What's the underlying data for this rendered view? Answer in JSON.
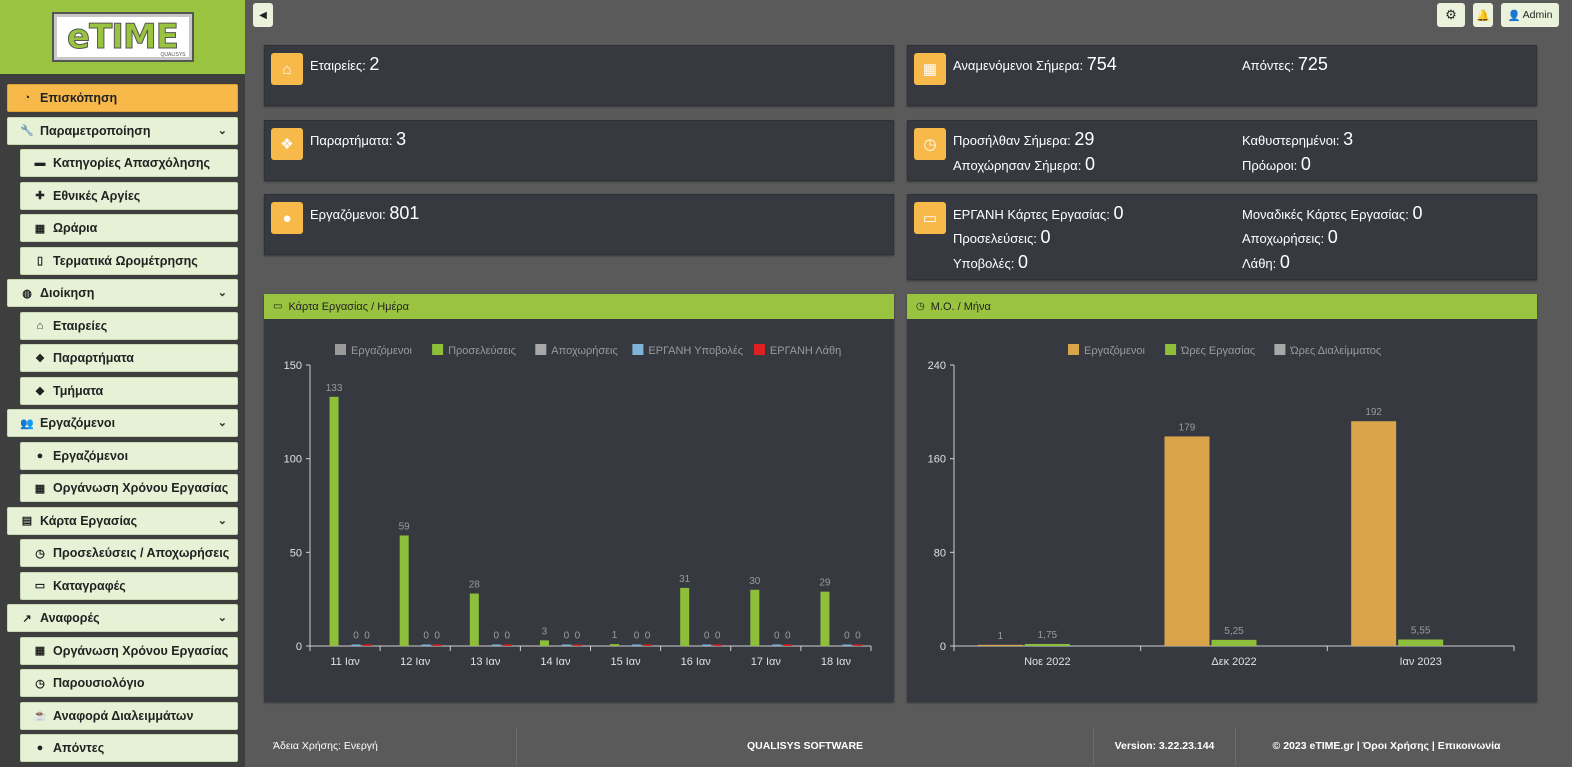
{
  "logo": {
    "text": "eTIME",
    "sub": "QUALISYS"
  },
  "sidebar": {
    "items": [
      {
        "label": "Επισκόπηση",
        "icon": "dashboard-icon",
        "glyph": "◔",
        "level": "top",
        "active": true
      },
      {
        "label": "Παραμετροποίηση",
        "icon": "wrench-icon",
        "glyph": "🔧",
        "level": "top",
        "chevron": true
      },
      {
        "label": "Κατηγορίες Απασχόλησης",
        "icon": "briefcase-icon",
        "glyph": "▬",
        "level": "sub"
      },
      {
        "label": "Εθνικές Αργίες",
        "icon": "gift-icon",
        "glyph": "✚",
        "level": "sub"
      },
      {
        "label": "Ωράρια",
        "icon": "grid-icon",
        "glyph": "▦",
        "level": "sub"
      },
      {
        "label": "Τερματικά Ωρομέτρησης",
        "icon": "mobile-icon",
        "glyph": "▯",
        "level": "sub"
      },
      {
        "label": "Διοίκηση",
        "icon": "globe-icon",
        "glyph": "◍",
        "level": "top",
        "chevron": true
      },
      {
        "label": "Εταιρείες",
        "icon": "home-icon",
        "glyph": "⌂",
        "level": "sub"
      },
      {
        "label": "Παραρτήματα",
        "icon": "cubes-icon",
        "glyph": "❖",
        "level": "sub"
      },
      {
        "label": "Τμήματα",
        "icon": "cube-icon",
        "glyph": "◆",
        "level": "sub"
      },
      {
        "label": "Εργαζόμενοι",
        "icon": "users-icon",
        "glyph": "👥",
        "level": "top",
        "chevron": true
      },
      {
        "label": "Εργαζόμενοι",
        "icon": "user-icon",
        "glyph": "●",
        "level": "sub"
      },
      {
        "label": "Οργάνωση Χρόνου Εργασίας",
        "icon": "grid-icon",
        "glyph": "▦",
        "level": "sub"
      },
      {
        "label": "Κάρτα Εργασίας",
        "icon": "calendar-icon",
        "glyph": "▤",
        "level": "top",
        "chevron": true
      },
      {
        "label": "Προσελεύσεις / Αποχωρήσεις",
        "icon": "clock-icon",
        "glyph": "◷",
        "level": "sub"
      },
      {
        "label": "Καταγραφές",
        "icon": "credit-card-icon",
        "glyph": "▭",
        "level": "sub"
      },
      {
        "label": "Αναφορές",
        "icon": "line-chart-icon",
        "glyph": "↗",
        "level": "top",
        "chevron": true
      },
      {
        "label": "Οργάνωση Χρόνου Εργασίας",
        "icon": "grid-icon",
        "glyph": "▦",
        "level": "sub"
      },
      {
        "label": "Παρουσιολόγιο",
        "icon": "clock-icon",
        "glyph": "◷",
        "level": "sub"
      },
      {
        "label": "Αναφορά Διαλειμμάτων",
        "icon": "coffee-icon",
        "glyph": "☕",
        "level": "sub"
      },
      {
        "label": "Απόντες",
        "icon": "user-times-icon",
        "glyph": "●",
        "level": "sub"
      }
    ]
  },
  "topbar": {
    "settings_icon": "gear-icon",
    "bell_icon": "bell-icon",
    "user_label": "Admin"
  },
  "stats": {
    "companies": {
      "label": "Εταιρείες:",
      "value": "2"
    },
    "branches": {
      "label": "Παραρτήματα:",
      "value": "3"
    },
    "employees": {
      "label": "Εργαζόμενοι:",
      "value": "801"
    },
    "expected_today": {
      "label": "Αναμενόμενοι Σήμερα:",
      "value": "754"
    },
    "absent": {
      "label": "Απόντες:",
      "value": "725"
    },
    "arrived_today": {
      "label": "Προσήλθαν Σήμερα:",
      "value": "29"
    },
    "late": {
      "label": "Καθυστερημένοι:",
      "value": "3"
    },
    "left_today": {
      "label": "Αποχώρησαν Σήμερα:",
      "value": "0"
    },
    "early": {
      "label": "Πρόωροι:",
      "value": "0"
    },
    "ergani_cards": {
      "label": "ΕΡΓΑΝΗ Κάρτες Εργασίας:",
      "value": "0"
    },
    "unique_cards": {
      "label": "Μοναδικές Κάρτες Εργασίας:",
      "value": "0"
    },
    "arrivals": {
      "label": "Προσελεύσεις:",
      "value": "0"
    },
    "departures": {
      "label": "Αποχωρήσεις:",
      "value": "0"
    },
    "submissions": {
      "label": "Υποβολές:",
      "value": "0"
    },
    "errors": {
      "label": "Λάθη:",
      "value": "0"
    }
  },
  "panels": {
    "left_title": "Κάρτα Εργασίας / Ημέρα",
    "right_title": "Μ.Ο. / Μήνα"
  },
  "colors": {
    "accent_green": "#9ac440",
    "accent_orange": "#f6b94a"
  },
  "chart_data": [
    {
      "type": "bar",
      "categories": [
        "11 Ιαν",
        "12 Ιαν",
        "13 Ιαν",
        "14 Ιαν",
        "15 Ιαν",
        "16 Ιαν",
        "17 Ιαν",
        "18 Ιαν"
      ],
      "ylim": [
        0,
        150
      ],
      "yticks": [
        0,
        50,
        100,
        150
      ],
      "legend_position": "top-center",
      "series": [
        {
          "name": "Εργαζόμενοι",
          "color": "#9a9a9a",
          "values": [
            null,
            null,
            null,
            null,
            null,
            null,
            null,
            null
          ]
        },
        {
          "name": "Προσελεύσεις",
          "color": "#8dbf3a",
          "values": [
            133,
            59,
            28,
            3,
            1,
            31,
            30,
            29
          ]
        },
        {
          "name": "Αποχωρήσεις",
          "color": "#a8a8a8",
          "values": [
            null,
            null,
            null,
            null,
            null,
            null,
            null,
            null
          ]
        },
        {
          "name": "ΕΡΓΑΝΗ Υποβολές",
          "color": "#7fb3d8",
          "values": [
            0,
            0,
            0,
            0,
            0,
            0,
            0,
            0
          ]
        },
        {
          "name": "ΕΡΓΑΝΗ Λάθη",
          "color": "#e02020",
          "values": [
            0,
            0,
            0,
            0,
            0,
            0,
            0,
            0
          ]
        }
      ]
    },
    {
      "type": "bar",
      "categories": [
        "Νοε 2022",
        "Δεκ 2022",
        "Ιαν 2023"
      ],
      "ylim": [
        0,
        240
      ],
      "yticks": [
        0,
        80,
        160,
        240
      ],
      "legend_position": "top-center",
      "series": [
        {
          "name": "Εργαζόμενοι",
          "color": "#d9a44a",
          "values": [
            1,
            179,
            192
          ],
          "labels": [
            "1",
            "179",
            "192"
          ]
        },
        {
          "name": "Ώρες Εργασίας",
          "color": "#8dbf3a",
          "values": [
            1.75,
            5.25,
            5.55
          ],
          "labels": [
            "1,75",
            "5,25",
            "5,55"
          ]
        },
        {
          "name": "Ώρες Διαλείμματος",
          "color": "#a8a8a8",
          "values": [
            null,
            null,
            null
          ],
          "labels": [
            null,
            null,
            null
          ]
        }
      ]
    }
  ],
  "footer": {
    "license": "Άδεια Χρήσης: Ενεργή",
    "company": "QUALISYS SOFTWARE",
    "version": "Version: 3.22.23.144",
    "copyright": "© 2023 eTIME.gr | Όροι Χρήσης | Επικοινωνία"
  }
}
